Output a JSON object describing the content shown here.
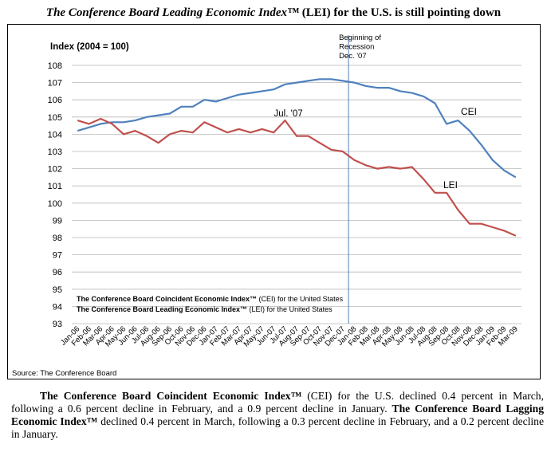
{
  "title": {
    "italic_part": "The Conference Board Leading Economic Index™",
    "rest": " (LEI) for the U.S. is still pointing down"
  },
  "chart_data": {
    "type": "line",
    "ylabel": "Index (2004 = 100)",
    "ylim": [
      93,
      108
    ],
    "yticks": [
      93,
      94,
      95,
      96,
      97,
      98,
      99,
      100,
      101,
      102,
      103,
      104,
      105,
      106,
      107,
      108
    ],
    "grid": "horizontal",
    "categories": [
      "Jan-06",
      "Feb-06",
      "Mar-06",
      "Apr-06",
      "May-06",
      "Jun-06",
      "Jul-06",
      "Aug-06",
      "Sep-06",
      "Oct-06",
      "Nov-06",
      "Dec-06",
      "Jan-07",
      "Feb-07",
      "Mar-07",
      "Apr-07",
      "May-07",
      "Jun-07",
      "Jul-07",
      "Aug-07",
      "Sep-07",
      "Oct-07",
      "Nov-07",
      "Dec-07",
      "Jan-08",
      "Feb-08",
      "Mar-08",
      "Apr-08",
      "May-08",
      "Jun-08",
      "Jul-08",
      "Aug-08",
      "Sep-08",
      "Oct-08",
      "Nov-08",
      "Dec-08",
      "Jan-09",
      "Feb-09",
      "Mar-09"
    ],
    "series": [
      {
        "name": "CEI",
        "color": "#4f81bd",
        "values": [
          104.2,
          104.4,
          104.6,
          104.7,
          104.7,
          104.8,
          105.0,
          105.1,
          105.2,
          105.6,
          105.6,
          106.0,
          105.9,
          106.1,
          106.3,
          106.4,
          106.5,
          106.6,
          106.9,
          107.0,
          107.1,
          107.2,
          107.2,
          107.1,
          107.0,
          106.8,
          106.7,
          106.7,
          106.5,
          106.4,
          106.2,
          105.8,
          104.6,
          104.8,
          104.2,
          103.4,
          102.5,
          101.9,
          101.5
        ]
      },
      {
        "name": "LEI",
        "color": "#c0504d",
        "values": [
          104.8,
          104.6,
          104.9,
          104.6,
          104.0,
          104.2,
          103.9,
          103.5,
          104.0,
          104.2,
          104.1,
          104.7,
          104.4,
          104.1,
          104.3,
          104.1,
          104.3,
          104.1,
          104.8,
          103.9,
          103.9,
          103.5,
          103.1,
          103.0,
          102.5,
          102.2,
          102.0,
          102.1,
          102.0,
          102.1,
          101.4,
          100.6,
          100.6,
          99.6,
          98.8,
          98.8,
          98.6,
          98.4,
          98.1
        ]
      }
    ],
    "annotations": {
      "recession_line": {
        "category": "Jan-08",
        "label_lines": [
          "Beginning of",
          "Recession",
          "Dec. '07"
        ]
      },
      "jul07": {
        "category": "Jul-07",
        "label": "Jul. '07"
      },
      "cei_label": "CEI",
      "lei_label": "LEI"
    },
    "legend_lines": [
      {
        "bold": "The Conference Board Coincident Economic Index™",
        "rest": " (CEI) for the United States"
      },
      {
        "bold": "The Conference Board Leading Economic Index™",
        "rest": " (LEI) for the United States"
      }
    ],
    "source": "Source: The Conference Board"
  },
  "paragraph": {
    "p1_bold": "The Conference Board Coincident Economic Index™",
    "p1_text": " (CEI) for the U.S. declined 0.4 percent in March, following a 0.6 percent decline in February, and a 0.9 percent decline in January. ",
    "p2_bold": "The Conference Board Lagging Economic Index™",
    "p2_text": " declined 0.4 percent in March, following a 0.3 percent decline in February, and a 0.2 percent decline in January."
  }
}
